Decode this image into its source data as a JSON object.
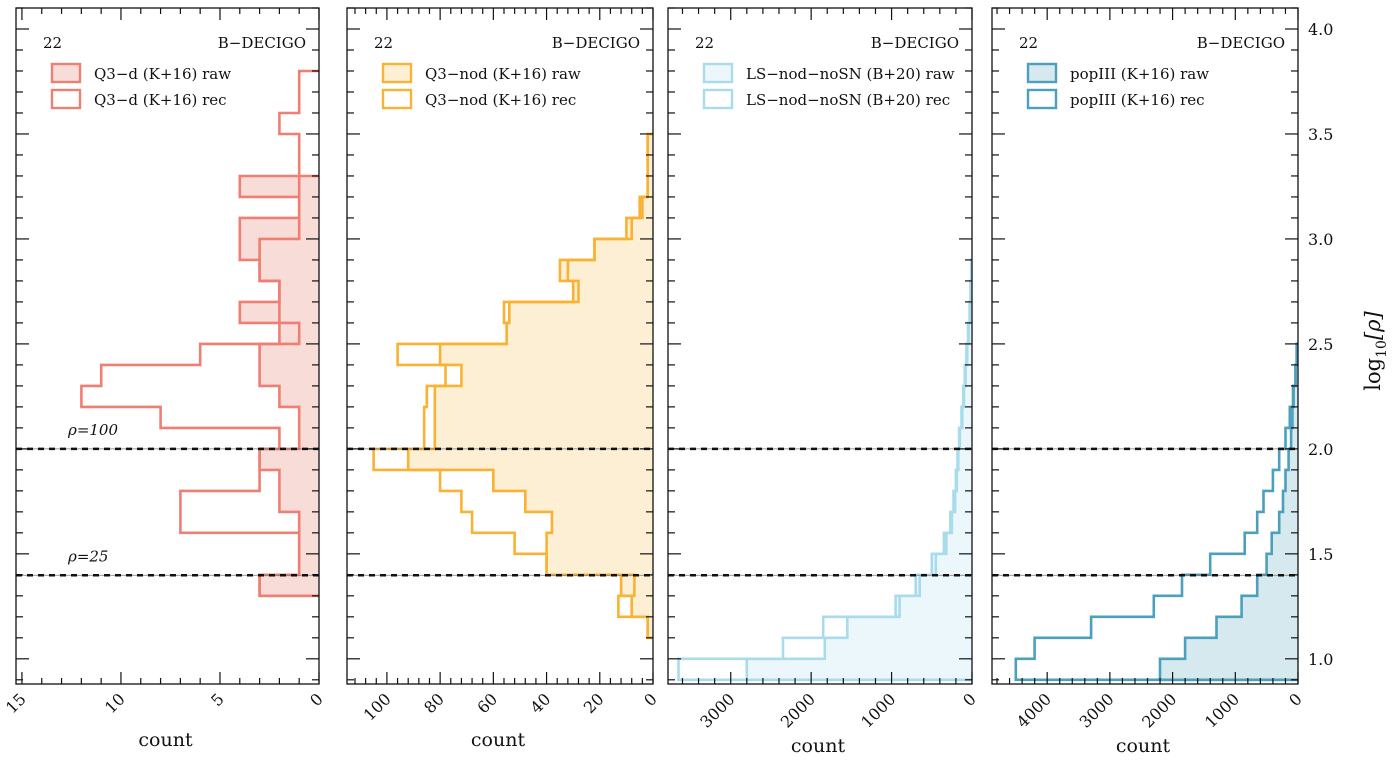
{
  "chart_data": {
    "type": "histogram",
    "orientation": "horizontal",
    "y_label": "log10[ρ]",
    "y_label_base": "log",
    "y_label_sub": "10",
    "y_label_arg": "[ρ]",
    "ylim": [
      0.88,
      4.1
    ],
    "y_ticks": [
      1.0,
      1.5,
      2.0,
      2.5,
      3.0,
      3.5,
      4.0
    ],
    "y_tick_labels": [
      "1.0",
      "1.5",
      "2.0",
      "2.5",
      "3.0",
      "3.5",
      "4.0"
    ],
    "bin_edges": [
      0.9,
      1.0,
      1.1,
      1.2,
      1.3,
      1.4,
      1.5,
      1.6,
      1.7,
      1.8,
      1.9,
      2.0,
      2.1,
      2.2,
      2.3,
      2.4,
      2.5,
      2.6,
      2.7,
      2.8,
      2.9,
      3.0,
      3.1,
      3.2,
      3.3,
      3.4,
      3.5,
      3.6,
      3.7,
      3.8
    ],
    "thresholds": [
      {
        "value": 2.0,
        "label": "ρ=100"
      },
      {
        "value": 1.398,
        "label": "ρ=25"
      }
    ],
    "panels": [
      {
        "number_label": "22",
        "detector": "B−DECIGO",
        "xlabel": "count",
        "xlim": [
          0,
          15.3
        ],
        "x_ticks": [
          0,
          5,
          10,
          15
        ],
        "x_tick_labels": [
          "0",
          "5",
          "10",
          "15"
        ],
        "color": "#ee7f72",
        "fill": "#f8dcd8",
        "show_threshold_labels": true,
        "series": [
          {
            "name": "Q3−d (K+16) raw",
            "kind": "filled",
            "values": [
              null,
              null,
              null,
              null,
              3,
              1,
              1,
              1,
              2,
              2,
              3,
              1,
              1,
              2,
              3,
              3,
              2,
              4,
              2,
              3,
              4,
              4,
              1,
              4
            ]
          },
          {
            "name": "Q3−d (K+16) rec",
            "kind": "step",
            "values": [
              null,
              null,
              null,
              null,
              3,
              1,
              1,
              7,
              7,
              3,
              3,
              2,
              8,
              12,
              11,
              6,
              1,
              2,
              2,
              3,
              3,
              1,
              1,
              1,
              1,
              1,
              2,
              1,
              1
            ]
          }
        ]
      },
      {
        "number_label": "22",
        "detector": "B−DECIGO",
        "xlabel": "count",
        "xlim": [
          0,
          115
        ],
        "x_ticks": [
          0,
          20,
          40,
          60,
          80,
          100
        ],
        "x_tick_labels": [
          "0",
          "20",
          "40",
          "60",
          "80",
          "100"
        ],
        "color": "#f9b233",
        "fill": "#fdefd4",
        "show_threshold_labels": false,
        "series": [
          {
            "name": "Q3−nod (K+16) raw",
            "kind": "filled",
            "values": [
              null,
              null,
              2,
              8,
              12,
              40,
              40,
              38,
              48,
              60,
              92,
              82,
              82,
              82,
              72,
              80,
              55,
              54,
              30,
              35,
              22,
              10,
              5,
              2,
              2,
              2
            ]
          },
          {
            "name": "Q3−nod (K+16) rec",
            "kind": "step",
            "values": [
              null,
              null,
              2,
              13,
              7,
              40,
              52,
              68,
              72,
              80,
              105,
              86,
              86,
              85,
              78,
              96,
              55,
              56,
              28,
              32,
              22,
              8,
              4,
              2,
              2,
              2
            ]
          }
        ]
      },
      {
        "number_label": "22",
        "detector": "B−DECIGO",
        "xlabel": "count",
        "xlim": [
          0,
          3780
        ],
        "x_ticks": [
          0,
          1000,
          2000,
          3000
        ],
        "x_tick_labels": [
          "0",
          "1000",
          "2000",
          "3000"
        ],
        "color": "#a8dcec",
        "fill": "#ebf7fb",
        "show_threshold_labels": false,
        "series": [
          {
            "name": "LS−nod−noSN (B+20) raw",
            "kind": "filled",
            "values": [
              2800,
              1830,
              1550,
              950,
              700,
              500,
              350,
              270,
              230,
              200,
              180,
              160,
              130,
              110,
              90,
              70,
              50,
              30,
              20,
              10
            ]
          },
          {
            "name": "LS−nod−noSN (B+20) rec",
            "kind": "step",
            "values": [
              3650,
              2350,
              1850,
              900,
              650,
              450,
              320,
              250,
              210,
              190,
              170,
              150,
              120,
              100,
              80,
              60,
              40,
              25,
              15,
              8
            ]
          }
        ]
      },
      {
        "number_label": "22",
        "detector": "B−DECIGO",
        "xlabel": "count",
        "xlim": [
          0,
          4880
        ],
        "x_ticks": [
          0,
          1000,
          2000,
          3000,
          4000
        ],
        "x_tick_labels": [
          "0",
          "1000",
          "2000",
          "3000",
          "4000"
        ],
        "color": "#4aa0bd",
        "fill": "#d5e9ef",
        "show_threshold_labels": false,
        "series": [
          {
            "name": "popIII (K+16) raw",
            "kind": "filled",
            "values": [
              2200,
              1800,
              1300,
              900,
              650,
              500,
              420,
              300,
              240,
              200,
              150,
              110,
              90,
              70,
              40,
              20
            ]
          },
          {
            "name": "popIII (K+16) rec",
            "kind": "step",
            "values": [
              4500,
              4200,
              3300,
              2300,
              1850,
              1400,
              850,
              650,
              550,
              400,
              300,
              200,
              130,
              80,
              40,
              20
            ]
          }
        ]
      }
    ]
  }
}
